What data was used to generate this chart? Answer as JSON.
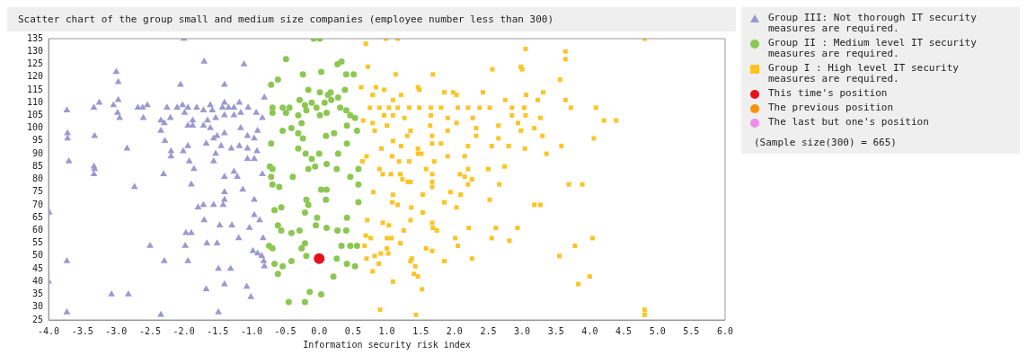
{
  "chart_data": {
    "type": "scatter",
    "title": "Scatter chart of the group small and medium size companies (employee number less than 300)",
    "xlabel": "Information security risk index",
    "xlim": [
      -4,
      6
    ],
    "xticks": [
      {
        "value": -4,
        "label": "-4.0"
      },
      {
        "value": -3.5,
        "label": "-3.5"
      },
      {
        "value": -3,
        "label": "-3.0"
      },
      {
        "value": -2.5,
        "label": "-2.5"
      },
      {
        "value": -2,
        "label": "-2.0"
      },
      {
        "value": -1.5,
        "label": "-1.5"
      },
      {
        "value": -1,
        "label": "-1.0"
      },
      {
        "value": -0.5,
        "label": "-0.5"
      },
      {
        "value": 0,
        "label": "0.0"
      },
      {
        "value": 0.5,
        "label": "0.5"
      },
      {
        "value": 1,
        "label": "1.0"
      },
      {
        "value": 1.5,
        "label": "1.5"
      },
      {
        "value": 2,
        "label": "2.0"
      },
      {
        "value": 2.5,
        "label": "2.5"
      },
      {
        "value": 3,
        "label": "3.0"
      },
      {
        "value": 3.5,
        "label": "3.5"
      },
      {
        "value": 4,
        "label": "4.0"
      },
      {
        "value": 4.5,
        "label": "4.5"
      },
      {
        "value": 5,
        "label": "5.0"
      },
      {
        "value": 5.5,
        "label": "5.5"
      },
      {
        "value": 6,
        "label": "6.0"
      }
    ],
    "ylim": [
      25,
      135
    ],
    "yticks": [
      25,
      30,
      35,
      40,
      45,
      50,
      55,
      60,
      65,
      70,
      75,
      80,
      85,
      90,
      95,
      100,
      105,
      110,
      115,
      120,
      125,
      130,
      135
    ],
    "grid": false,
    "legend": "right",
    "annotations": [
      "(Sample size(300) = 665)"
    ],
    "series": [
      {
        "name": "Group III: Not thorough IT security measures are required.",
        "color": "#9b99d1",
        "marker": "triangle",
        "x": [
          -2.0,
          -1.7,
          -1.11,
          -3.0,
          -2.97,
          -2.05,
          -1.4,
          -0.81,
          -2.97,
          -3.25,
          -3.04,
          -3.73,
          -3.33,
          -2.98,
          -2.95,
          -2.68,
          -2.61,
          -2.6,
          -2.54,
          -2.25,
          -2.2,
          -2.1,
          -2.02,
          -1.99,
          -1.94,
          -1.81,
          -1.71,
          -1.61,
          -1.58,
          -1.53,
          -1.65,
          -1.43,
          -1.4,
          -1.4,
          -1.34,
          -1.26,
          -1.18,
          -1.26,
          -1.16,
          -1.05,
          -0.93,
          -0.84,
          -2.34,
          -2.29,
          -1.87,
          -1.94,
          -1.87,
          -1.71,
          -1.61,
          -2.34,
          -1.16,
          -0.91,
          -3.72,
          -3.72,
          -3.32,
          -1.4,
          -1.06,
          -0.96,
          -2.28,
          -1.67,
          -1.56,
          -1.51,
          -2.84,
          -2.01,
          -1.94,
          -2.19,
          -1.45,
          -1.3,
          -1.18,
          -1.06,
          -0.92,
          -1.53,
          -2.19,
          -3.7,
          -1.92,
          -1.56,
          -1.06,
          -0.96,
          -3.33,
          -3.32,
          -3.33,
          -1.85,
          -2.3,
          -1.4,
          -1.26,
          -1.21,
          -0.84,
          -1.89,
          -2.73,
          -1.13,
          -1.4,
          -1.4,
          -0.96,
          -1.79,
          -1.71,
          -1.56,
          -1.42,
          -3.99,
          -0.96,
          -1.7,
          -0.88,
          -1.47,
          -1.29,
          -1.03,
          -1.97,
          -1.89,
          -1.19,
          -0.83,
          -2.5,
          -1.98,
          -1.66,
          -1.51,
          -0.98,
          -0.91,
          -0.85,
          -0.82,
          -0.81,
          -3.73,
          -2.29,
          -1.94,
          -1.49,
          -1.31,
          -4.0,
          -1.4,
          -1.67,
          -1.07,
          -3.07,
          -2.82,
          -1.01,
          -3.73,
          -2.34,
          -1.49
        ],
        "values": [
          135,
          126,
          125,
          122,
          118,
          117,
          117,
          112,
          111,
          110,
          109,
          107,
          108,
          106,
          104,
          108,
          108,
          104,
          109,
          108,
          104,
          108,
          109,
          106,
          108,
          108,
          107,
          109,
          107,
          104,
          103,
          108,
          110,
          105,
          108,
          108,
          110,
          105,
          106,
          108,
          106,
          104,
          103,
          102,
          103,
          101,
          101,
          101,
          100,
          99,
          100,
          99,
          98,
          96,
          97,
          98,
          97,
          96,
          95,
          94,
          96,
          97,
          92,
          91,
          93,
          91,
          93,
          92,
          93,
          92,
          91,
          90,
          89,
          87,
          87,
          87,
          88,
          88,
          85,
          84,
          82,
          84,
          82,
          81,
          83,
          81,
          82,
          78,
          77,
          76,
          75,
          72,
          72,
          69,
          70,
          70,
          70,
          67,
          66,
          64,
          64,
          62,
          62,
          61,
          59,
          59,
          57,
          57,
          54,
          54,
          55,
          55,
          52,
          51,
          50,
          48,
          46,
          48,
          48,
          48,
          45,
          45,
          40,
          39,
          37,
          38,
          35,
          35,
          34,
          28,
          27,
          28
        ]
      },
      {
        "name": "Group II : Medium level IT security measures are required.",
        "color": "#8cc752",
        "marker": "circle",
        "x": [
          -0.08,
          0.01,
          -0.49,
          0.33,
          0.27,
          -0.24,
          0.03,
          0.4,
          0.51,
          -0.71,
          -0.61,
          -0.16,
          0.01,
          0.17,
          0.38,
          -0.69,
          -0.54,
          -0.44,
          -0.69,
          -0.49,
          -0.29,
          -0.21,
          -0.11,
          -0.04,
          0.08,
          0.13,
          0.18,
          0.28,
          0.31,
          0.4,
          -0.31,
          -0.19,
          0.01,
          0.11,
          0.46,
          0.53,
          0.41,
          0.56,
          -0.54,
          -0.41,
          -0.26,
          -0.31,
          -0.24,
          -0.71,
          0.1,
          0.22,
          0.41,
          -0.31,
          -0.2,
          -0.11,
          0.0,
          0.28,
          -0.73,
          -0.69,
          -0.71,
          -0.69,
          -0.59,
          -0.16,
          -0.06,
          0.11,
          0.26,
          -0.39,
          0.46,
          0.58,
          0.58,
          0.03,
          0.11,
          -0.19,
          -0.16,
          0.1,
          -0.66,
          -0.56,
          0.58,
          -0.21,
          -0.03,
          0.41,
          -0.61,
          -0.29,
          -0.05,
          0.11,
          -0.56,
          -0.41,
          0.27,
          0.4,
          -0.74,
          -0.69,
          -0.26,
          -0.21,
          0.33,
          0.46,
          0.56,
          -0.19,
          0.26,
          -0.66,
          -0.54,
          -0.41,
          0.41,
          0.53,
          -0.61,
          0.21,
          -0.14,
          0.03,
          -0.45,
          -0.21
        ],
        "values": [
          135,
          135,
          127,
          126,
          125,
          121,
          122,
          121,
          121,
          117,
          119,
          115,
          114,
          114,
          115,
          108,
          108,
          108,
          106,
          106,
          111,
          109,
          110,
          108,
          110,
          113,
          111,
          112,
          108,
          107,
          105,
          107,
          105,
          106,
          105,
          104,
          101,
          99,
          99,
          100,
          102,
          98,
          96,
          94,
          97,
          98,
          94,
          92,
          90,
          88,
          90,
          90,
          85,
          84,
          81,
          78,
          77,
          84,
          85,
          86,
          84,
          81,
          81,
          78,
          84,
          76,
          76,
          72,
          70,
          72,
          68,
          69,
          71,
          67,
          65,
          65,
          62,
          60,
          62,
          61,
          60,
          59,
          60,
          60,
          54,
          53,
          53,
          55,
          54,
          54,
          54,
          50,
          49,
          47,
          46,
          48,
          47,
          46,
          43,
          42,
          36,
          35,
          32,
          32
        ]
      },
      {
        "name": "Group I : High level IT security measures are required.",
        "color": "#fcc424",
        "marker": "square",
        "x": [
          0.99,
          1.16,
          4.81,
          0.69,
          3.05,
          3.64,
          3.64,
          0.72,
          2.98,
          3.0,
          2.56,
          1.13,
          1.68,
          3.56,
          0.62,
          0.84,
          1.46,
          1.48,
          0.96,
          1.98,
          2.42,
          3.31,
          0.79,
          1.09,
          1.21,
          1.85,
          2.03,
          2.75,
          3.06,
          3.64,
          3.23,
          0.75,
          0.89,
          1.03,
          1.16,
          1.33,
          1.48,
          1.65,
          1.8,
          2.05,
          2.2,
          2.37,
          2.52,
          2.85,
          3.03,
          3.72,
          4.09,
          0.96,
          1.09,
          1.26,
          1.65,
          1.9,
          2.27,
          0.65,
          2.85,
          3.05,
          3.27,
          4.21,
          4.39,
          0.79,
          1.0,
          1.64,
          2.03,
          2.65,
          2.94,
          0.82,
          1.35,
          1.9,
          2.32,
          2.98,
          3.18,
          1.3,
          1.67,
          2.32,
          2.65,
          3.3,
          4.06,
          1.09,
          1.67,
          1.8,
          0.92,
          1.21,
          1.46,
          2.2,
          2.55,
          2.8,
          3.04,
          3.58,
          0.7,
          1.08,
          1.46,
          1.51,
          2.15,
          3.36,
          0.64,
          1.18,
          1.33,
          1.7,
          1.9,
          0.89,
          1.58,
          2.2,
          2.5,
          2.74,
          0.94,
          1.06,
          1.2,
          1.67,
          2.08,
          1.23,
          2.15,
          1.31,
          1.67,
          2.26,
          0.8,
          1.35,
          1.67,
          2.2,
          2.66,
          3.69,
          3.89,
          1.09,
          1.53,
          1.94,
          2.09,
          1.08,
          1.16,
          1.85,
          2.52,
          1.36,
          2.03,
          3.18,
          3.27,
          1.53,
          0.71,
          0.94,
          1.03,
          1.35,
          1.67,
          1.25,
          1.68,
          1.74,
          2.21,
          2.61,
          2.93,
          0.69,
          0.76,
          1.0,
          1.07,
          2.01,
          2.55,
          2.81,
          4.04,
          0.67,
          1.0,
          1.2,
          1.58,
          1.67,
          2.05,
          3.78,
          0.91,
          0.82,
          0.7,
          1.02,
          1.37,
          1.85,
          2.26,
          3.55,
          0.88,
          1.35,
          1.42,
          0.79,
          1.4,
          1.46,
          4.0,
          3.83,
          1.09,
          1.52,
          0.9,
          1.43,
          4.81,
          4.81
        ],
        "values": [
          135,
          135,
          135,
          133,
          131,
          130,
          127,
          124,
          124,
          123,
          123,
          121,
          121,
          119,
          116,
          116,
          116,
          115,
          115,
          114,
          114,
          114,
          113,
          111,
          113,
          114,
          113,
          111,
          113,
          111,
          111,
          108,
          108,
          108,
          108,
          108,
          108,
          108,
          108,
          108,
          108,
          108,
          108,
          108,
          108,
          108,
          108,
          105,
          105,
          104,
          105,
          104,
          104,
          103,
          105,
          105,
          104,
          103,
          103,
          102,
          101,
          101,
          102,
          101,
          102,
          99,
          99,
          99,
          100,
          99,
          100,
          97,
          97,
          97,
          96,
          97,
          96,
          95,
          94,
          94,
          92,
          93,
          92,
          93,
          93,
          93,
          92,
          93,
          89,
          89,
          90,
          90,
          89,
          90,
          87,
          87,
          87,
          87,
          89,
          84,
          84,
          84,
          84,
          85,
          82,
          82,
          82,
          82,
          82,
          80,
          81,
          79,
          79,
          80,
          75,
          79,
          77,
          78,
          78,
          78,
          78,
          74,
          74,
          75,
          74,
          71,
          70,
          71,
          72,
          69,
          69,
          70,
          70,
          67,
          64,
          63,
          62,
          64,
          63,
          60,
          61,
          60,
          61,
          61,
          61,
          58,
          57,
          57,
          57,
          57,
          57,
          56,
          57,
          54,
          53,
          55,
          53,
          52,
          54,
          54,
          51,
          50,
          49,
          51,
          49,
          48,
          49,
          50,
          47,
          48,
          46,
          44,
          43,
          42,
          42,
          39,
          40,
          37,
          29,
          27,
          29,
          27
        ]
      },
      {
        "name": "This time's position",
        "color": "#e8121a",
        "marker": "circle",
        "x": [
          0.0
        ],
        "values": [
          49
        ]
      },
      {
        "name": "The previous position",
        "color": "#ff9100",
        "marker": "circle"
      },
      {
        "name": "The last but one's position",
        "color": "#f08ce8",
        "marker": "circle"
      }
    ]
  }
}
